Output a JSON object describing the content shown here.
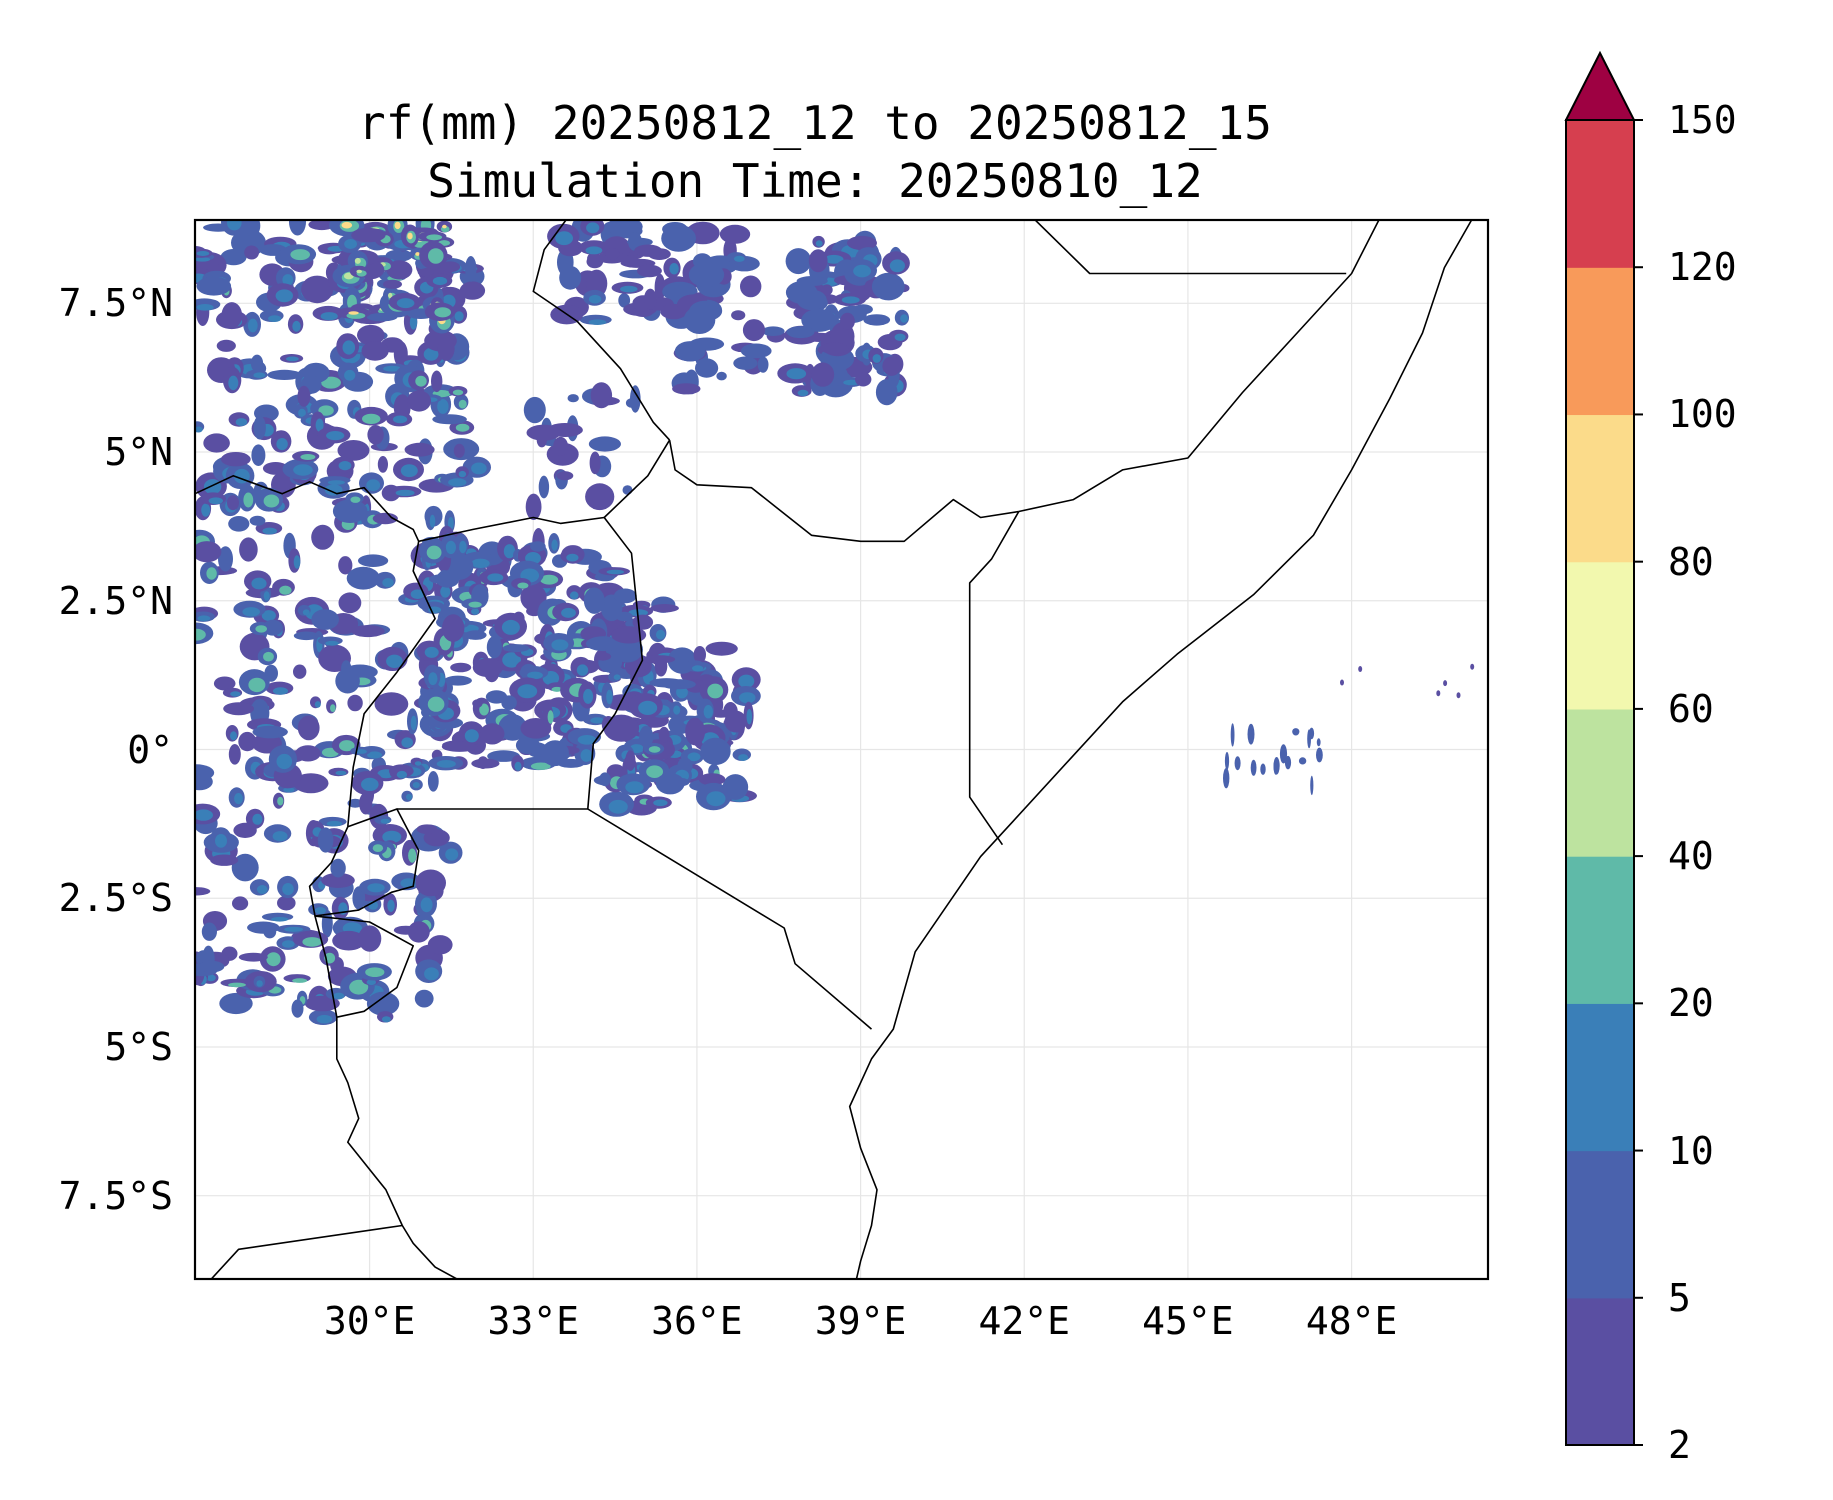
{
  "title": {
    "line1": "rf(mm) 20250812_12 to 20250812_15",
    "line2": "Simulation Time: 20250810_12"
  },
  "map": {
    "lon_range": [
      26.8,
      50.5
    ],
    "lat_range": [
      -8.9,
      8.9
    ],
    "lat_ticks": [
      {
        "value": 7.5,
        "label": "7.5°N"
      },
      {
        "value": 5,
        "label": "5°N"
      },
      {
        "value": 2.5,
        "label": "2.5°N"
      },
      {
        "value": 0,
        "label": "0°"
      },
      {
        "value": -2.5,
        "label": "2.5°S"
      },
      {
        "value": -5,
        "label": "5°S"
      },
      {
        "value": -7.5,
        "label": "7.5°S"
      }
    ],
    "lon_ticks": [
      {
        "value": 30,
        "label": "30°E"
      },
      {
        "value": 33,
        "label": "33°E"
      },
      {
        "value": 36,
        "label": "36°E"
      },
      {
        "value": 39,
        "label": "39°E"
      },
      {
        "value": 42,
        "label": "42°E"
      },
      {
        "value": 45,
        "label": "45°E"
      },
      {
        "value": 48,
        "label": "48°E"
      }
    ]
  },
  "colorbar": {
    "levels": [
      "2",
      "5",
      "10",
      "20",
      "40",
      "60",
      "80",
      "100",
      "120",
      "150"
    ],
    "colors": [
      "#5a4fa2",
      "#4a62ad",
      "#3a7fb8",
      "#5fbaa8",
      "#bde39f",
      "#f2f8ae",
      "#fbdb8a",
      "#f89a5a",
      "#d63f4f"
    ],
    "extend_color": "#9e0142"
  }
}
